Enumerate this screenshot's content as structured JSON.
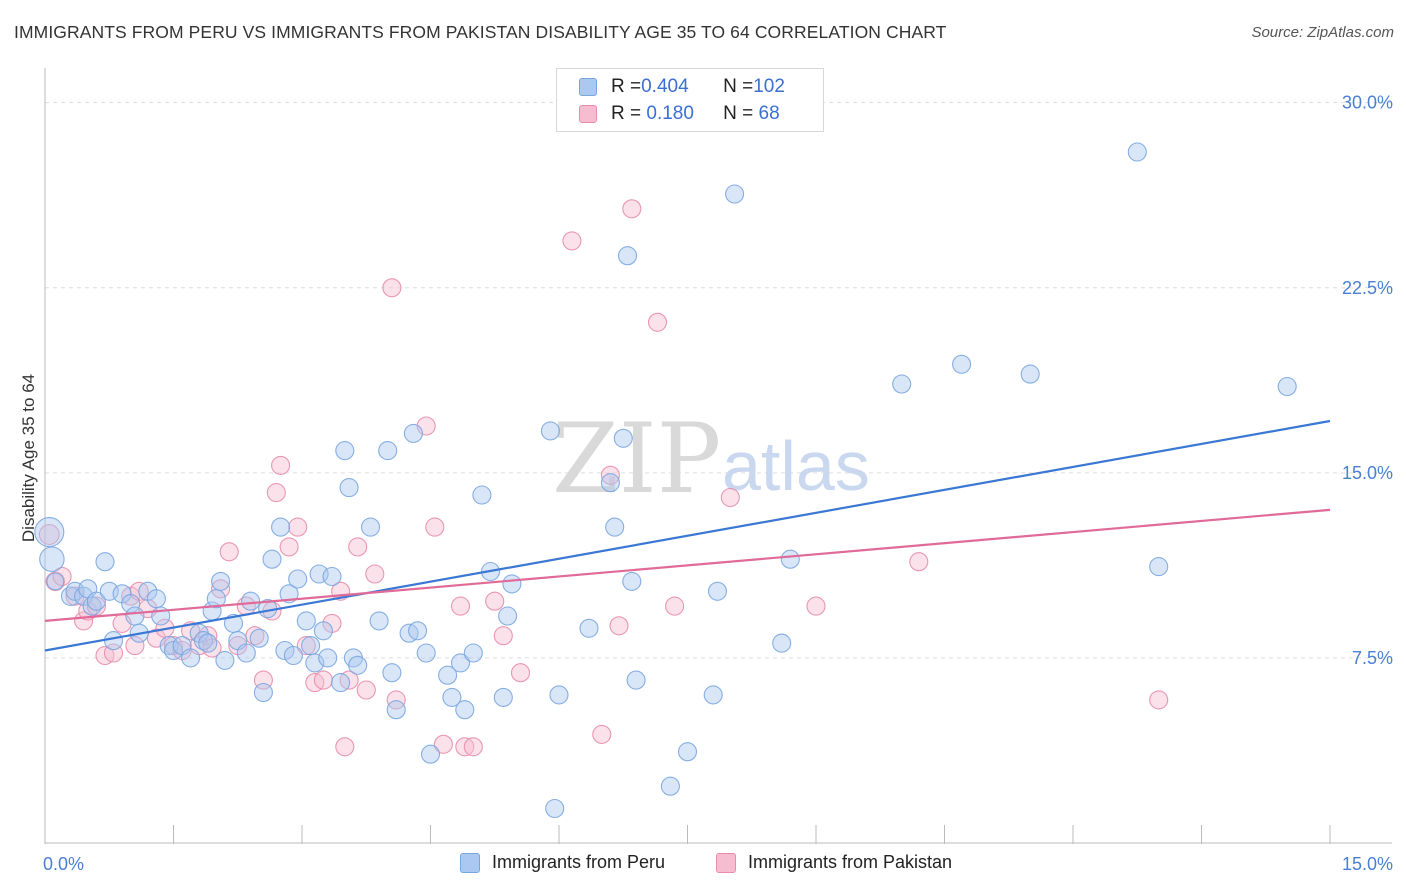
{
  "title": "IMMIGRANTS FROM PERU VS IMMIGRANTS FROM PAKISTAN DISABILITY AGE 35 TO 64 CORRELATION CHART",
  "source": "Source: ZipAtlas.com",
  "watermark": {
    "zip": "ZIP",
    "atlas": "atlas"
  },
  "stats": [
    {
      "r_label": "R = ",
      "r_value": "0.404",
      "n_label": "N = ",
      "n_value": "102",
      "color": "#aac8f0",
      "border": "#7aa6e0"
    },
    {
      "r_label": "R = ",
      "r_value": " 0.180",
      "n_label": "N = ",
      "n_value": " 68",
      "color": "#f6bcd0",
      "border": "#e88cab"
    }
  ],
  "legend": [
    {
      "label": "Immigrants from Peru",
      "color": "#aac8f0",
      "border": "#7aa6e0"
    },
    {
      "label": "Immigrants from Pakistan",
      "color": "#f6bcd0",
      "border": "#e88cab"
    }
  ],
  "chart_data": {
    "type": "scatter",
    "title": "IMMIGRANTS FROM PERU VS IMMIGRANTS FROM PAKISTAN DISABILITY AGE 35 TO 64 CORRELATION CHART",
    "xlabel": "",
    "ylabel": "Disability Age 35 to 64",
    "xlim": [
      0,
      15
    ],
    "ylim": [
      0,
      31.0
    ],
    "x_tick_labels": [
      "0.0%",
      "15.0%"
    ],
    "y_ticks": [
      7.5,
      15.0,
      22.5,
      30.0
    ],
    "y_tick_labels": [
      "7.5%",
      "15.0%",
      "22.5%",
      "30.0%"
    ],
    "grid": true,
    "legend_position": "bottom",
    "series": [
      {
        "name": "Immigrants from Peru",
        "color": "#aac8f0",
        "stroke": "#7aa6e0",
        "trend": {
          "x": [
            0,
            15
          ],
          "y": [
            7.8,
            17.1
          ],
          "color": "#3a78d4"
        },
        "points": [
          [
            0.05,
            12.6,
            1.9
          ],
          [
            0.08,
            11.5,
            1.6
          ],
          [
            0.12,
            10.6,
            1.1
          ],
          [
            0.3,
            10.0,
            1.2
          ],
          [
            0.35,
            10.2,
            1.0
          ],
          [
            0.45,
            10.0,
            0.8
          ],
          [
            0.5,
            10.3,
            0.7
          ],
          [
            0.55,
            9.6,
            0.7
          ],
          [
            0.6,
            9.8,
            0.7
          ],
          [
            0.7,
            11.4,
            0.7
          ],
          [
            0.75,
            10.2,
            0.7
          ],
          [
            0.8,
            8.2,
            0.7
          ],
          [
            0.9,
            10.1,
            0.7
          ],
          [
            1.0,
            9.7,
            0.7
          ],
          [
            1.05,
            9.2,
            0.7
          ],
          [
            1.1,
            8.5,
            0.7
          ],
          [
            1.2,
            10.2,
            0.7
          ],
          [
            1.3,
            9.9,
            0.7
          ],
          [
            1.35,
            9.2,
            0.7
          ],
          [
            1.45,
            8.0,
            0.7
          ],
          [
            1.5,
            7.8,
            0.7
          ],
          [
            1.6,
            8.0,
            0.7
          ],
          [
            1.7,
            7.5,
            0.7
          ],
          [
            1.8,
            8.5,
            0.7
          ],
          [
            1.85,
            8.2,
            0.7
          ],
          [
            1.9,
            8.1,
            0.7
          ],
          [
            1.95,
            9.4,
            0.7
          ],
          [
            2.0,
            9.9,
            0.7
          ],
          [
            2.05,
            10.6,
            0.7
          ],
          [
            2.1,
            7.4,
            0.7
          ],
          [
            2.2,
            8.9,
            0.7
          ],
          [
            2.25,
            8.2,
            0.7
          ],
          [
            2.35,
            7.7,
            0.7
          ],
          [
            2.4,
            9.8,
            0.7
          ],
          [
            2.5,
            8.3,
            0.7
          ],
          [
            2.55,
            6.1,
            0.7
          ],
          [
            2.6,
            9.5,
            0.7
          ],
          [
            2.65,
            11.5,
            0.7
          ],
          [
            2.75,
            12.8,
            0.7
          ],
          [
            2.8,
            7.8,
            0.7
          ],
          [
            2.85,
            10.1,
            0.7
          ],
          [
            2.9,
            7.6,
            0.7
          ],
          [
            2.95,
            10.7,
            0.7
          ],
          [
            3.05,
            9.0,
            0.7
          ],
          [
            3.1,
            8.0,
            0.7
          ],
          [
            3.15,
            7.3,
            0.7
          ],
          [
            3.2,
            10.9,
            0.7
          ],
          [
            3.25,
            8.6,
            0.7
          ],
          [
            3.3,
            7.5,
            0.7
          ],
          [
            3.35,
            10.8,
            0.7
          ],
          [
            3.45,
            6.5,
            0.7
          ],
          [
            3.5,
            15.9,
            0.7
          ],
          [
            3.55,
            14.4,
            0.7
          ],
          [
            3.6,
            7.5,
            0.7
          ],
          [
            3.65,
            7.2,
            0.7
          ],
          [
            3.8,
            12.8,
            0.7
          ],
          [
            3.9,
            9.0,
            0.7
          ],
          [
            4.0,
            15.9,
            0.7
          ],
          [
            4.05,
            6.9,
            0.7
          ],
          [
            4.1,
            5.4,
            0.7
          ],
          [
            4.25,
            8.5,
            0.7
          ],
          [
            4.3,
            16.6,
            0.7
          ],
          [
            4.35,
            8.6,
            0.7
          ],
          [
            4.45,
            7.7,
            0.7
          ],
          [
            4.5,
            3.6,
            0.7
          ],
          [
            4.7,
            6.8,
            0.7
          ],
          [
            4.75,
            5.9,
            0.7
          ],
          [
            4.85,
            7.3,
            0.7
          ],
          [
            4.9,
            5.4,
            0.7
          ],
          [
            5.0,
            7.7,
            0.7
          ],
          [
            5.1,
            14.1,
            0.7
          ],
          [
            5.2,
            11.0,
            0.7
          ],
          [
            5.35,
            5.9,
            0.7
          ],
          [
            5.4,
            9.2,
            0.7
          ],
          [
            5.45,
            10.5,
            0.7
          ],
          [
            5.9,
            16.7,
            0.7
          ],
          [
            5.95,
            1.4,
            0.7
          ],
          [
            6.0,
            6.0,
            0.7
          ],
          [
            6.35,
            8.7,
            0.7
          ],
          [
            6.6,
            14.6,
            0.7
          ],
          [
            6.65,
            12.8,
            0.7
          ],
          [
            6.75,
            16.4,
            0.7
          ],
          [
            6.8,
            23.8,
            0.7
          ],
          [
            6.85,
            10.6,
            0.7
          ],
          [
            6.9,
            6.6,
            0.7
          ],
          [
            7.3,
            2.3,
            0.7
          ],
          [
            7.5,
            3.7,
            0.7
          ],
          [
            7.8,
            6.0,
            0.7
          ],
          [
            7.85,
            10.2,
            0.7
          ],
          [
            8.05,
            26.3,
            0.7
          ],
          [
            8.6,
            8.1,
            0.7
          ],
          [
            8.7,
            11.5,
            0.7
          ],
          [
            10.0,
            18.6,
            0.7
          ],
          [
            10.7,
            19.4,
            0.7
          ],
          [
            11.5,
            19.0,
            0.7
          ],
          [
            12.75,
            28.0,
            0.7
          ],
          [
            13.0,
            11.2,
            0.7
          ],
          [
            14.5,
            18.5,
            0.7
          ]
        ]
      },
      {
        "name": "Immigrants from Pakistan",
        "color": "#f6bcd0",
        "stroke": "#e88cab",
        "trend": {
          "x": [
            0,
            15
          ],
          "y": [
            9.0,
            13.5
          ],
          "color": "#e06a98"
        },
        "points": [
          [
            0.05,
            12.5,
            1.3
          ],
          [
            0.12,
            10.6,
            1.2
          ],
          [
            0.2,
            10.8,
            0.8
          ],
          [
            0.35,
            10.0,
            0.8
          ],
          [
            0.45,
            9.0,
            0.8
          ],
          [
            0.5,
            9.4,
            0.8
          ],
          [
            0.6,
            9.6,
            0.8
          ],
          [
            0.7,
            7.6,
            0.8
          ],
          [
            0.8,
            7.7,
            0.8
          ],
          [
            0.9,
            8.9,
            0.8
          ],
          [
            1.0,
            10.0,
            0.8
          ],
          [
            1.05,
            8.0,
            0.8
          ],
          [
            1.1,
            10.2,
            0.8
          ],
          [
            1.2,
            9.5,
            0.8
          ],
          [
            1.3,
            8.3,
            0.8
          ],
          [
            1.4,
            8.7,
            0.8
          ],
          [
            1.5,
            8.0,
            0.8
          ],
          [
            1.6,
            7.8,
            0.8
          ],
          [
            1.7,
            8.6,
            0.8
          ],
          [
            1.8,
            8.0,
            0.8
          ],
          [
            1.9,
            8.4,
            0.8
          ],
          [
            1.95,
            7.9,
            0.8
          ],
          [
            2.05,
            10.3,
            0.8
          ],
          [
            2.15,
            11.8,
            0.8
          ],
          [
            2.25,
            8.0,
            0.8
          ],
          [
            2.35,
            9.6,
            0.8
          ],
          [
            2.45,
            8.4,
            0.8
          ],
          [
            2.55,
            6.6,
            0.8
          ],
          [
            2.65,
            9.4,
            0.8
          ],
          [
            2.7,
            14.2,
            0.8
          ],
          [
            2.75,
            15.3,
            0.8
          ],
          [
            2.85,
            12.0,
            0.8
          ],
          [
            2.95,
            12.8,
            0.8
          ],
          [
            3.05,
            8.0,
            0.8
          ],
          [
            3.15,
            6.5,
            0.8
          ],
          [
            3.25,
            6.6,
            0.8
          ],
          [
            3.35,
            8.9,
            0.8
          ],
          [
            3.45,
            10.2,
            0.8
          ],
          [
            3.5,
            3.9,
            0.8
          ],
          [
            3.55,
            6.6,
            0.8
          ],
          [
            3.65,
            12.0,
            0.8
          ],
          [
            3.75,
            6.2,
            0.8
          ],
          [
            3.85,
            10.9,
            0.8
          ],
          [
            4.05,
            22.5,
            0.8
          ],
          [
            4.1,
            5.8,
            0.8
          ],
          [
            4.45,
            16.9,
            0.8
          ],
          [
            4.55,
            12.8,
            0.8
          ],
          [
            4.65,
            4.0,
            0.8
          ],
          [
            4.85,
            9.6,
            0.8
          ],
          [
            4.9,
            3.9,
            0.8
          ],
          [
            5.0,
            3.9,
            0.8
          ],
          [
            5.25,
            9.8,
            0.8
          ],
          [
            5.35,
            8.4,
            0.8
          ],
          [
            5.55,
            6.9,
            0.8
          ],
          [
            6.15,
            24.4,
            0.8
          ],
          [
            6.5,
            4.4,
            0.8
          ],
          [
            6.6,
            14.9,
            0.8
          ],
          [
            6.7,
            8.8,
            0.8
          ],
          [
            6.85,
            25.7,
            0.8
          ],
          [
            7.15,
            21.1,
            0.8
          ],
          [
            7.35,
            9.6,
            0.8
          ],
          [
            8.0,
            14.0,
            0.8
          ],
          [
            9.0,
            9.6,
            0.8
          ],
          [
            10.2,
            11.4,
            0.8
          ],
          [
            13.0,
            5.8,
            0.8
          ]
        ]
      }
    ]
  }
}
